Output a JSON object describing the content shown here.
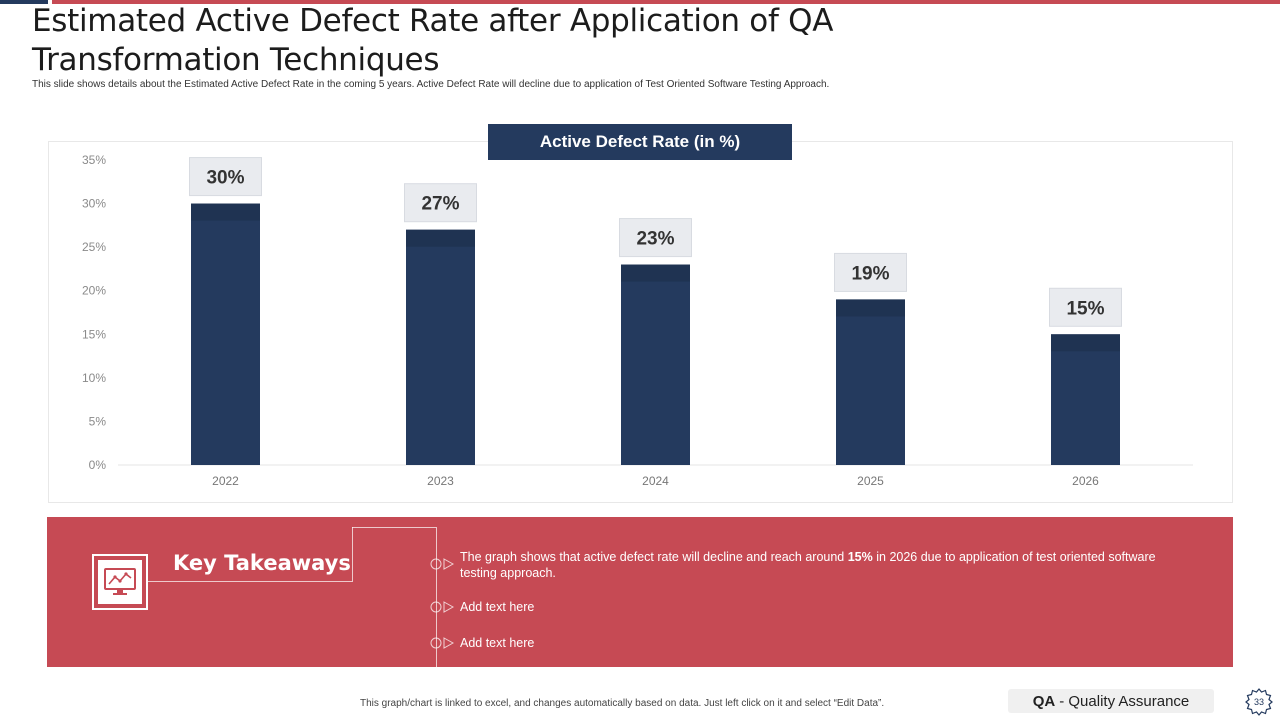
{
  "header": {
    "title": "Estimated Active Defect Rate after Application of QA Transformation Techniques",
    "subtitle": "This slide shows details about the Estimated   Active Defect Rate in the coming 5 years. Active Defect Rate will decline due to application  of Test Oriented Software Testing Approach."
  },
  "chart_data": {
    "type": "bar",
    "title": "Active Defect Rate (in %)",
    "categories": [
      "2022",
      "2023",
      "2024",
      "2025",
      "2026"
    ],
    "values": [
      30,
      27,
      23,
      19,
      15
    ],
    "data_labels": [
      "30%",
      "27%",
      "23%",
      "19%",
      "15%"
    ],
    "y_ticks": [
      "0%",
      "5%",
      "10%",
      "15%",
      "20%",
      "25%",
      "30%",
      "35%"
    ],
    "ylim": [
      0,
      35
    ],
    "xlabel": "",
    "ylabel": "",
    "grid": false,
    "bar_color": "#243a5e"
  },
  "takeaways": {
    "title": "Key Takeaways",
    "bullet1_pre": "The graph shows that active defect rate will decline and reach around ",
    "bullet1_bold": "15%",
    "bullet1_post": " in 2026 due to application of test oriented software  testing approach.",
    "bullet2": "Add text here",
    "bullet3": "Add text here"
  },
  "footer": {
    "note": "This graph/chart is linked to excel, and changes automatically based on data. Just left click on it and select “Edit Data”.",
    "brand_abbr": "QA",
    "brand_name": "- Quality Assurance",
    "page_number": "33"
  },
  "colors": {
    "navy": "#243a5e",
    "red": "#c64a54"
  }
}
